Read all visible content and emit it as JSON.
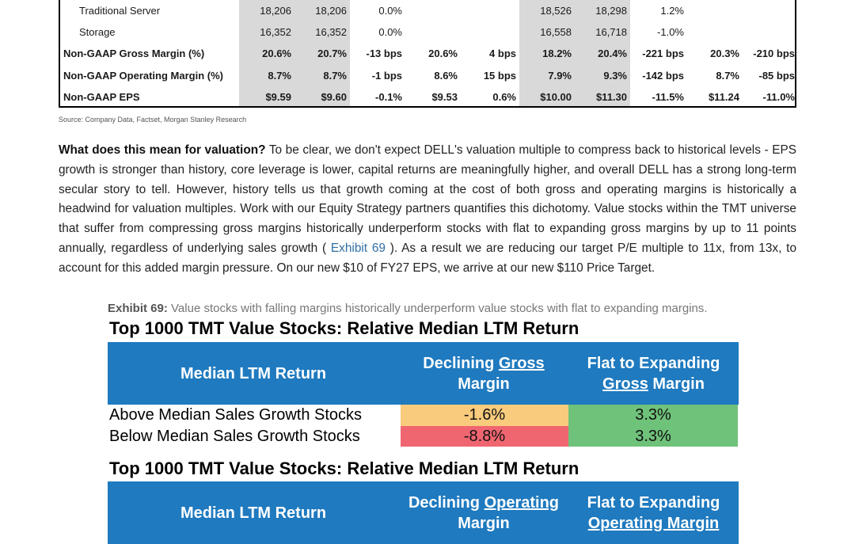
{
  "fin_table": {
    "rows": [
      {
        "label": "Traditional Server",
        "style": "sub",
        "cells": [
          "18,206",
          "18,206",
          "0.0%",
          "",
          "",
          "18,526",
          "18,298",
          "1.2%",
          "",
          ""
        ]
      },
      {
        "label": "Storage",
        "style": "sub",
        "cells": [
          "16,352",
          "16,352",
          "0.0%",
          "",
          "",
          "16,558",
          "16,718",
          "-1.0%",
          "",
          ""
        ]
      },
      {
        "label": "Non-GAAP Gross Margin (%)",
        "style": "bold",
        "cells": [
          "20.6%",
          "20.7%",
          "-13 bps",
          "20.6%",
          "4 bps",
          "18.2%",
          "20.4%",
          "-221 bps",
          "20.3%",
          "-210 bps"
        ]
      },
      {
        "label": "Non-GAAP Operating Margin (%)",
        "style": "bold",
        "cells": [
          "8.7%",
          "8.7%",
          "-1 bps",
          "8.6%",
          "15 bps",
          "7.9%",
          "9.3%",
          "-142 bps",
          "8.7%",
          "-85 bps"
        ]
      },
      {
        "label": "Non-GAAP EPS",
        "style": "bold",
        "cells": [
          "$9.59",
          "$9.60",
          "-0.1%",
          "$9.53",
          "0.6%",
          "$10.00",
          "$11.30",
          "-11.5%",
          "$11.24",
          "-11.0%"
        ]
      }
    ],
    "shade_color": "#d9d9d9"
  },
  "source_note": "Source: Company Data, Factset, Morgan Stanley Research",
  "paragraph": {
    "lead": "What does this mean for valuation?",
    "text_1": " To be clear, we don't expect DELL's valuation multiple to compress back to historical levels - EPS growth is stronger than history, core leverage is lower, capital returns are meaningfully higher, and overall DELL has a strong long-term secular story to tell. However, history tells us that growth coming at the cost of both gross and operating margins is historically a headwind for valuation multiples. Work with our Equity Strategy partners quantifies this dichotomy. Value stocks within the TMT universe that suffer from compressing gross margins historically underperform stocks with flat to expanding gross margins by up to 11 points annually, regardless of underlying sales growth ( ",
    "link": "Exhibit 69",
    "text_2": " ). As a result we are reducing our target P/E multiple to 11x, from 13x, to account for this added margin pressure. On our new $10 of FY27 EPS, we arrive at our new $110 Price Target."
  },
  "exhibit": {
    "number": "Exhibit 69:",
    "caption": "Value stocks with falling margins historically underperform value stocks with flat to expanding margins.",
    "grids": [
      {
        "title": "Top 1000 TMT Value Stocks: Relative Median LTM Return",
        "header": {
          "col1": "Median LTM Return",
          "col2_line1_pre": "Declining ",
          "col2_line1_u": "Gross",
          "col2_line2": "Margin",
          "col3_line1": "Flat to Expanding",
          "col3_line2_u": "Gross",
          "col3_line2_post": " Margin"
        },
        "rows": [
          {
            "label": "Above Median Sales Growth Stocks",
            "declining": "-1.6%",
            "flat": "3.3%",
            "declining_color": "#f9cb7c",
            "flat_color": "#6fc27a"
          },
          {
            "label": "Below Median Sales Growth Stocks",
            "declining": "-8.8%",
            "flat": "3.3%",
            "declining_color": "#f06670",
            "flat_color": "#6fc27a"
          }
        ]
      },
      {
        "title": "Top 1000 TMT Value Stocks: Relative Median LTM Return",
        "header": {
          "col1": "Median LTM Return",
          "col2_line1_pre": "Declining ",
          "col2_line1_u": "Operating",
          "col2_line2": "Margin",
          "col3_line1": "Flat to Expanding",
          "col3_line2_u": "Operating Margin",
          "col3_line2_post": ""
        }
      }
    ],
    "header_color": "#1f7abf"
  }
}
